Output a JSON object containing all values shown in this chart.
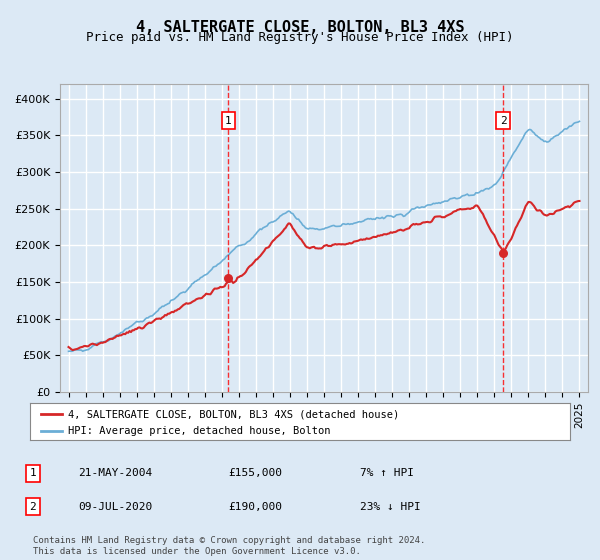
{
  "title": "4, SALTERGATE CLOSE, BOLTON, BL3 4XS",
  "subtitle": "Price paid vs. HM Land Registry's House Price Index (HPI)",
  "ylabel": "",
  "background_color": "#dce9f5",
  "plot_bg_color": "#dce9f5",
  "grid_color": "#ffffff",
  "ylim": [
    0,
    420000
  ],
  "yticks": [
    0,
    50000,
    100000,
    150000,
    200000,
    250000,
    300000,
    350000,
    400000
  ],
  "ytick_labels": [
    "£0",
    "£50K",
    "£100K",
    "£150K",
    "£200K",
    "£250K",
    "£300K",
    "£350K",
    "£400K"
  ],
  "hpi_color": "#6baed6",
  "property_color": "#d62728",
  "transaction1_date": "21-MAY-2004",
  "transaction1_price": 155000,
  "transaction1_label": "7% ↑ HPI",
  "transaction1_year": 2004.38,
  "transaction2_date": "09-JUL-2020",
  "transaction2_price": 190000,
  "transaction2_label": "23% ↓ HPI",
  "transaction2_year": 2020.52,
  "legend_line1": "4, SALTERGATE CLOSE, BOLTON, BL3 4XS (detached house)",
  "legend_line2": "HPI: Average price, detached house, Bolton",
  "footer_line1": "Contains HM Land Registry data © Crown copyright and database right 2024.",
  "footer_line2": "This data is licensed under the Open Government Licence v3.0.",
  "marker_label1": "1",
  "marker_label2": "2"
}
